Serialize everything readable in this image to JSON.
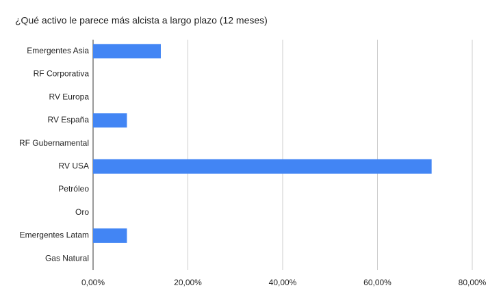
{
  "chart_data": {
    "type": "hbar",
    "title": "¿Qué activo le parece más alcista a largo plazo (12 meses)",
    "categories": [
      "Emergentes Asia",
      "RF Corporativa",
      "RV Europa",
      "RV España",
      "RF Gubernamental",
      "RV USA",
      "Petróleo",
      "Oro",
      "Emergentes Latam",
      "Gas Natural"
    ],
    "values": [
      14.29,
      0,
      0,
      7.14,
      0,
      71.43,
      0,
      0,
      7.14,
      0
    ],
    "color": "#4285f4",
    "xlim": [
      0,
      80
    ],
    "xticks": [
      {
        "value": 0,
        "label": "0,00%"
      },
      {
        "value": 20,
        "label": "20,00%"
      },
      {
        "value": 40,
        "label": "40,00%"
      },
      {
        "value": 60,
        "label": "60,00%"
      },
      {
        "value": 80,
        "label": "80,00%"
      }
    ],
    "grid": true
  }
}
